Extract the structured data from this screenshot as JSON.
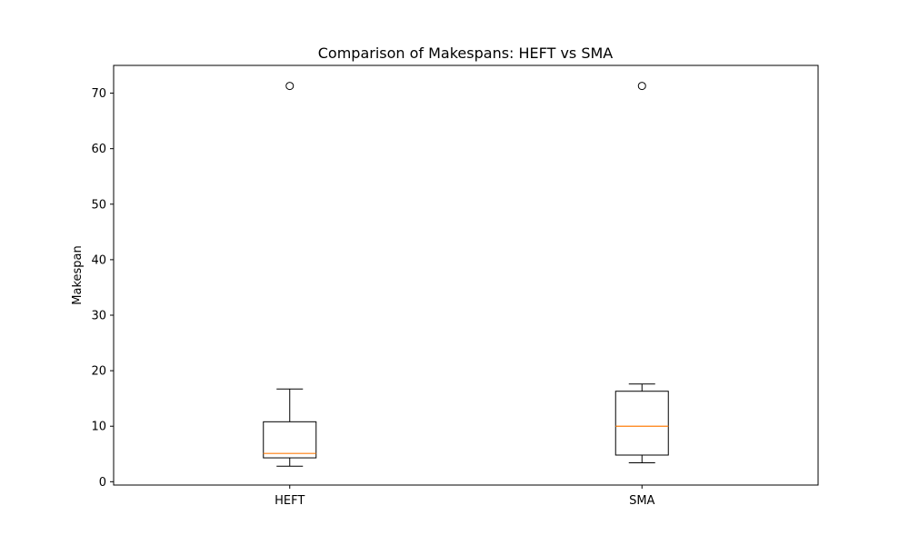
{
  "chart_data": {
    "type": "box",
    "title": "Comparison of Makespans: HEFT vs SMA",
    "xlabel": "",
    "ylabel": "Makespan",
    "ylim": [
      -0.6,
      75
    ],
    "yticks": [
      0,
      10,
      20,
      30,
      40,
      50,
      60,
      70
    ],
    "grid": false,
    "categories": [
      "HEFT",
      "SMA"
    ],
    "boxes": [
      {
        "category": "HEFT",
        "whisker_low": 2.8,
        "q1": 4.3,
        "median": 5.1,
        "q3": 10.8,
        "whisker_high": 16.7,
        "outliers": [
          71.3
        ]
      },
      {
        "category": "SMA",
        "whisker_low": 3.4,
        "q1": 4.8,
        "median": 10.0,
        "q3": 16.3,
        "whisker_high": 17.6,
        "outliers": [
          71.3
        ]
      }
    ],
    "colors": {
      "box": "#000000",
      "median": "#ff7f0e",
      "axes": "#000000"
    }
  }
}
